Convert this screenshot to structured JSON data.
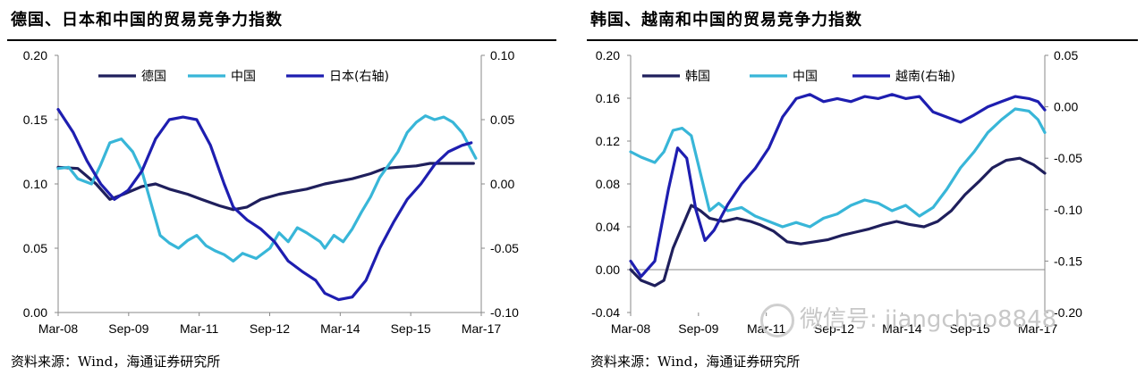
{
  "source_note": "资料来源：Wind，海通证券研究所",
  "watermark": "微信号: jiangchao8848",
  "chart_data": [
    {
      "type": "line",
      "title": "德国、日本和中国的贸易竞争力指数",
      "x_labels": [
        "Mar-08",
        "Sep-09",
        "Mar-11",
        "Sep-12",
        "Mar-14",
        "Sep-15",
        "Mar-17"
      ],
      "x_range": [
        2008.17,
        2017.42
      ],
      "ylim": [
        0,
        0.2
      ],
      "yticks": [
        "0.00",
        "0.05",
        "0.10",
        "0.15",
        "0.20"
      ],
      "ylim_right": [
        -0.1,
        0.1
      ],
      "yticks_right": [
        "-0.10",
        "-0.05",
        "0.00",
        "0.05",
        "0.10"
      ],
      "legend": "top",
      "series": [
        {
          "name": "德国",
          "axis": "left",
          "color": "#1f1f5c",
          "points": [
            [
              2008.17,
              0.113
            ],
            [
              2008.6,
              0.112
            ],
            [
              2009.0,
              0.1
            ],
            [
              2009.3,
              0.088
            ],
            [
              2009.6,
              0.092
            ],
            [
              2010.0,
              0.098
            ],
            [
              2010.3,
              0.1
            ],
            [
              2010.6,
              0.096
            ],
            [
              2011.0,
              0.092
            ],
            [
              2011.3,
              0.088
            ],
            [
              2011.7,
              0.083
            ],
            [
              2012.0,
              0.08
            ],
            [
              2012.3,
              0.082
            ],
            [
              2012.6,
              0.088
            ],
            [
              2013.0,
              0.092
            ],
            [
              2013.3,
              0.094
            ],
            [
              2013.6,
              0.096
            ],
            [
              2014.0,
              0.1
            ],
            [
              2014.3,
              0.102
            ],
            [
              2014.6,
              0.104
            ],
            [
              2015.0,
              0.108
            ],
            [
              2015.3,
              0.112
            ],
            [
              2015.6,
              0.113
            ],
            [
              2016.0,
              0.114
            ],
            [
              2016.3,
              0.116
            ],
            [
              2016.6,
              0.116
            ],
            [
              2017.0,
              0.116
            ],
            [
              2017.25,
              0.116
            ]
          ]
        },
        {
          "name": "中国",
          "axis": "left",
          "color": "#38b6d8",
          "points": [
            [
              2008.17,
              0.112
            ],
            [
              2008.4,
              0.113
            ],
            [
              2008.6,
              0.104
            ],
            [
              2008.9,
              0.1
            ],
            [
              2009.1,
              0.115
            ],
            [
              2009.3,
              0.132
            ],
            [
              2009.55,
              0.135
            ],
            [
              2009.8,
              0.125
            ],
            [
              2010.0,
              0.11
            ],
            [
              2010.2,
              0.085
            ],
            [
              2010.4,
              0.06
            ],
            [
              2010.6,
              0.054
            ],
            [
              2010.8,
              0.05
            ],
            [
              2011.0,
              0.056
            ],
            [
              2011.2,
              0.06
            ],
            [
              2011.4,
              0.052
            ],
            [
              2011.6,
              0.048
            ],
            [
              2011.8,
              0.045
            ],
            [
              2012.0,
              0.04
            ],
            [
              2012.2,
              0.046
            ],
            [
              2012.5,
              0.042
            ],
            [
              2012.8,
              0.05
            ],
            [
              2013.0,
              0.062
            ],
            [
              2013.2,
              0.055
            ],
            [
              2013.4,
              0.066
            ],
            [
              2013.6,
              0.062
            ],
            [
              2013.9,
              0.055
            ],
            [
              2014.0,
              0.05
            ],
            [
              2014.2,
              0.06
            ],
            [
              2014.4,
              0.055
            ],
            [
              2014.6,
              0.065
            ],
            [
              2014.8,
              0.078
            ],
            [
              2015.0,
              0.09
            ],
            [
              2015.2,
              0.105
            ],
            [
              2015.4,
              0.115
            ],
            [
              2015.6,
              0.125
            ],
            [
              2015.8,
              0.14
            ],
            [
              2016.0,
              0.148
            ],
            [
              2016.2,
              0.153
            ],
            [
              2016.4,
              0.15
            ],
            [
              2016.6,
              0.152
            ],
            [
              2016.8,
              0.148
            ],
            [
              2017.0,
              0.14
            ],
            [
              2017.15,
              0.13
            ],
            [
              2017.3,
              0.12
            ]
          ]
        },
        {
          "name": "日本(右轴)",
          "axis": "right",
          "color": "#1e1eb0",
          "points": [
            [
              2008.17,
              0.058
            ],
            [
              2008.5,
              0.04
            ],
            [
              2008.8,
              0.018
            ],
            [
              2009.1,
              0.0
            ],
            [
              2009.4,
              -0.012
            ],
            [
              2009.7,
              -0.005
            ],
            [
              2010.0,
              0.01
            ],
            [
              2010.3,
              0.035
            ],
            [
              2010.6,
              0.05
            ],
            [
              2010.9,
              0.052
            ],
            [
              2011.2,
              0.05
            ],
            [
              2011.5,
              0.03
            ],
            [
              2011.8,
              0.0
            ],
            [
              2012.0,
              -0.018
            ],
            [
              2012.3,
              -0.028
            ],
            [
              2012.6,
              -0.035
            ],
            [
              2012.9,
              -0.045
            ],
            [
              2013.2,
              -0.06
            ],
            [
              2013.5,
              -0.068
            ],
            [
              2013.8,
              -0.075
            ],
            [
              2014.0,
              -0.085
            ],
            [
              2014.3,
              -0.09
            ],
            [
              2014.6,
              -0.088
            ],
            [
              2014.9,
              -0.075
            ],
            [
              2015.2,
              -0.05
            ],
            [
              2015.5,
              -0.03
            ],
            [
              2015.8,
              -0.012
            ],
            [
              2016.1,
              0.0
            ],
            [
              2016.4,
              0.015
            ],
            [
              2016.7,
              0.025
            ],
            [
              2017.0,
              0.03
            ],
            [
              2017.2,
              0.032
            ]
          ]
        }
      ]
    },
    {
      "type": "line",
      "title": "韩国、越南和中国的贸易竞争力指数",
      "x_labels": [
        "Mar-08",
        "Sep-09",
        "Mar-11",
        "Sep-12",
        "Mar-14",
        "Sep-15",
        "Mar-17"
      ],
      "x_range": [
        2008.17,
        2017.25
      ],
      "ylim": [
        -0.04,
        0.2
      ],
      "yticks": [
        "-0.04",
        "0.00",
        "0.04",
        "0.08",
        "0.12",
        "0.16",
        "0.20"
      ],
      "ylim_right": [
        -0.2,
        0.05
      ],
      "yticks_right": [
        "-0.20",
        "-0.15",
        "-0.10",
        "-0.05",
        "0.00",
        "0.05"
      ],
      "legend": "top",
      "series": [
        {
          "name": "韩国",
          "axis": "left",
          "color": "#1f1f5c",
          "points": [
            [
              2008.17,
              0.0
            ],
            [
              2008.4,
              -0.01
            ],
            [
              2008.7,
              -0.015
            ],
            [
              2008.9,
              -0.01
            ],
            [
              2009.1,
              0.02
            ],
            [
              2009.3,
              0.04
            ],
            [
              2009.5,
              0.06
            ],
            [
              2009.7,
              0.055
            ],
            [
              2009.9,
              0.048
            ],
            [
              2010.2,
              0.045
            ],
            [
              2010.5,
              0.048
            ],
            [
              2010.8,
              0.045
            ],
            [
              2011.0,
              0.042
            ],
            [
              2011.3,
              0.036
            ],
            [
              2011.6,
              0.026
            ],
            [
              2011.9,
              0.024
            ],
            [
              2012.2,
              0.026
            ],
            [
              2012.5,
              0.028
            ],
            [
              2012.8,
              0.032
            ],
            [
              2013.1,
              0.035
            ],
            [
              2013.4,
              0.038
            ],
            [
              2013.7,
              0.042
            ],
            [
              2014.0,
              0.045
            ],
            [
              2014.3,
              0.042
            ],
            [
              2014.6,
              0.04
            ],
            [
              2014.9,
              0.045
            ],
            [
              2015.2,
              0.055
            ],
            [
              2015.5,
              0.07
            ],
            [
              2015.8,
              0.082
            ],
            [
              2016.1,
              0.095
            ],
            [
              2016.4,
              0.102
            ],
            [
              2016.7,
              0.104
            ],
            [
              2017.0,
              0.098
            ],
            [
              2017.25,
              0.09
            ]
          ]
        },
        {
          "name": "中国",
          "axis": "left",
          "color": "#38b6d8",
          "points": [
            [
              2008.17,
              0.11
            ],
            [
              2008.4,
              0.105
            ],
            [
              2008.7,
              0.1
            ],
            [
              2008.9,
              0.11
            ],
            [
              2009.1,
              0.13
            ],
            [
              2009.3,
              0.132
            ],
            [
              2009.5,
              0.125
            ],
            [
              2009.7,
              0.09
            ],
            [
              2009.9,
              0.055
            ],
            [
              2010.1,
              0.062
            ],
            [
              2010.3,
              0.055
            ],
            [
              2010.6,
              0.058
            ],
            [
              2010.9,
              0.05
            ],
            [
              2011.2,
              0.045
            ],
            [
              2011.5,
              0.04
            ],
            [
              2011.8,
              0.044
            ],
            [
              2012.1,
              0.04
            ],
            [
              2012.4,
              0.048
            ],
            [
              2012.7,
              0.052
            ],
            [
              2013.0,
              0.06
            ],
            [
              2013.3,
              0.065
            ],
            [
              2013.6,
              0.062
            ],
            [
              2013.9,
              0.055
            ],
            [
              2014.2,
              0.06
            ],
            [
              2014.5,
              0.05
            ],
            [
              2014.8,
              0.058
            ],
            [
              2015.1,
              0.075
            ],
            [
              2015.4,
              0.095
            ],
            [
              2015.7,
              0.11
            ],
            [
              2016.0,
              0.128
            ],
            [
              2016.3,
              0.14
            ],
            [
              2016.6,
              0.15
            ],
            [
              2016.9,
              0.148
            ],
            [
              2017.1,
              0.14
            ],
            [
              2017.25,
              0.128
            ]
          ]
        },
        {
          "name": "越南(右轴)",
          "axis": "right",
          "color": "#1e1eb0",
          "points": [
            [
              2008.17,
              -0.15
            ],
            [
              2008.4,
              -0.165
            ],
            [
              2008.7,
              -0.15
            ],
            [
              2009.0,
              -0.08
            ],
            [
              2009.2,
              -0.04
            ],
            [
              2009.4,
              -0.05
            ],
            [
              2009.6,
              -0.1
            ],
            [
              2009.8,
              -0.13
            ],
            [
              2010.0,
              -0.12
            ],
            [
              2010.3,
              -0.095
            ],
            [
              2010.6,
              -0.075
            ],
            [
              2010.9,
              -0.06
            ],
            [
              2011.2,
              -0.04
            ],
            [
              2011.5,
              -0.01
            ],
            [
              2011.8,
              0.008
            ],
            [
              2012.1,
              0.012
            ],
            [
              2012.4,
              0.005
            ],
            [
              2012.7,
              0.008
            ],
            [
              2013.0,
              0.005
            ],
            [
              2013.3,
              0.01
            ],
            [
              2013.6,
              0.008
            ],
            [
              2013.9,
              0.012
            ],
            [
              2014.2,
              0.008
            ],
            [
              2014.5,
              0.01
            ],
            [
              2014.8,
              -0.005
            ],
            [
              2015.1,
              -0.01
            ],
            [
              2015.4,
              -0.015
            ],
            [
              2015.7,
              -0.008
            ],
            [
              2016.0,
              0.0
            ],
            [
              2016.3,
              0.005
            ],
            [
              2016.6,
              0.01
            ],
            [
              2016.9,
              0.008
            ],
            [
              2017.1,
              0.005
            ],
            [
              2017.25,
              -0.003
            ]
          ]
        }
      ]
    }
  ]
}
